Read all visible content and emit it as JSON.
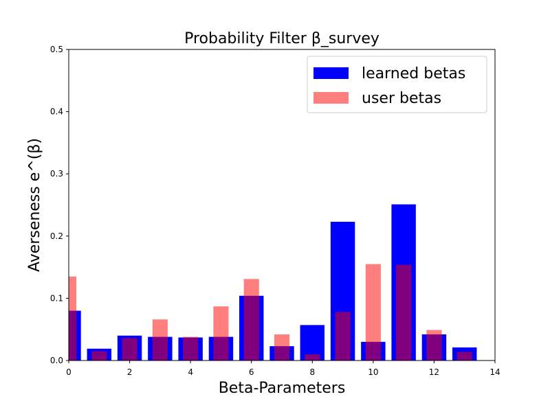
{
  "chart_data": {
    "type": "bar",
    "title": "Probability Filter β_survey",
    "xlabel": "Beta-Parameters",
    "ylabel": "Averseness  e^(β)",
    "xlim": [
      0,
      14
    ],
    "ylim": [
      0,
      0.5
    ],
    "xticks": [
      0,
      2,
      4,
      6,
      8,
      10,
      12,
      14
    ],
    "yticks": [
      0.0,
      0.1,
      0.2,
      0.3,
      0.4,
      0.5
    ],
    "xtick_labels": [
      "0",
      "2",
      "4",
      "6",
      "8",
      "10",
      "12",
      "14"
    ],
    "ytick_labels": [
      "0.0",
      "0.1",
      "0.2",
      "0.3",
      "0.4",
      "0.5"
    ],
    "categories": [
      0,
      1,
      2,
      3,
      4,
      5,
      6,
      7,
      8,
      9,
      10,
      11,
      12,
      13
    ],
    "series": [
      {
        "name": "learned betas",
        "color": "#0000ff",
        "bar_width": 0.8,
        "values": [
          0.08,
          0.019,
          0.04,
          0.038,
          0.037,
          0.038,
          0.104,
          0.023,
          0.057,
          0.223,
          0.03,
          0.251,
          0.042,
          0.021
        ]
      },
      {
        "name": "user betas",
        "color": "#ff0000",
        "alpha": 0.5,
        "bar_width": 0.5,
        "values": [
          0.135,
          0.015,
          0.036,
          0.066,
          0.038,
          0.087,
          0.131,
          0.042,
          0.01,
          0.078,
          0.155,
          0.154,
          0.049,
          0.014
        ]
      }
    ],
    "legend_position": "upper-right"
  }
}
